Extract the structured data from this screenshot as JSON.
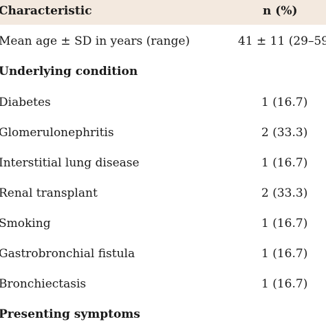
{
  "table": {
    "header": {
      "characteristic": "Characteristic",
      "n_percent": "n (%)"
    },
    "rows": [
      {
        "label": "Mean age ± SD in years (range)",
        "value": "41 ± 11 (29–59"
      },
      {
        "label": "Underlying condition",
        "value": ""
      },
      {
        "label": "Diabetes",
        "value": "1 (16.7)"
      },
      {
        "label": "Glomerulonephritis",
        "value": "2 (33.3)"
      },
      {
        "label": "Interstitial lung disease",
        "value": "1 (16.7)"
      },
      {
        "label": "Renal transplant",
        "value": "2 (33.3)"
      },
      {
        "label": "Smoking",
        "value": "1 (16.7)"
      },
      {
        "label": "Gastrobronchial fistula",
        "value": "1 (16.7)"
      },
      {
        "label": "Bronchiectasis",
        "value": "1 (16.7)"
      },
      {
        "label": "Presenting symptoms",
        "value": ""
      }
    ]
  }
}
